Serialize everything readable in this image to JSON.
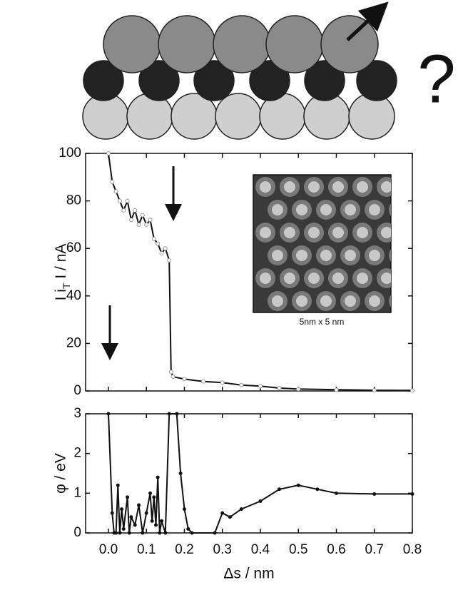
{
  "diagram": {
    "label": "?"
  },
  "chart_data": [
    {
      "type": "line",
      "ylabel": [
        "I i",
        "T",
        " I / nA"
      ],
      "inset_label": "5nm x 5 nm",
      "xlim": [
        -0.06,
        0.8
      ],
      "ylim": [
        0,
        100
      ],
      "yticks": [
        0,
        20,
        40,
        60,
        80,
        100
      ],
      "xticks": [
        {
          "value": 0,
          "label": "0.0"
        },
        0.1,
        0.2,
        0.3,
        0.4,
        0.5,
        0.6,
        0.7,
        0.8
      ],
      "series": [
        {
          "color": "#111111",
          "x": [
            0.0,
            0.01,
            0.02,
            0.03,
            0.04,
            0.05,
            0.06,
            0.07,
            0.08,
            0.09,
            0.1,
            0.11,
            0.12,
            0.13,
            0.14,
            0.15,
            0.16,
            0.165,
            0.17,
            0.2,
            0.25,
            0.3,
            0.35,
            0.4,
            0.45,
            0.5,
            0.6,
            0.7,
            0.8
          ],
          "values": [
            100,
            88,
            84,
            80,
            76,
            80,
            72,
            76,
            70,
            74,
            70,
            72,
            64,
            62,
            58,
            60,
            55,
            8,
            6,
            5,
            4,
            3.5,
            2.5,
            2,
            1.2,
            0.8,
            0.5,
            0.3,
            0.2
          ]
        }
      ]
    },
    {
      "type": "line",
      "ylabel": "φ / eV",
      "xlabel": "Δs / nm",
      "xlim": [
        -0.06,
        0.8
      ],
      "ylim": [
        0,
        3
      ],
      "yticks": [
        0,
        1,
        2,
        3
      ],
      "xticks": [
        {
          "value": 0,
          "label": "0.0"
        },
        0.1,
        0.2,
        0.3,
        0.4,
        0.5,
        0.6,
        0.7,
        0.8
      ],
      "series": [
        {
          "color": "#111111",
          "x": [
            0.0,
            0.01,
            0.015,
            0.02,
            0.025,
            0.03,
            0.035,
            0.04,
            0.05,
            0.055,
            0.06,
            0.07,
            0.08,
            0.09,
            0.1,
            0.11,
            0.115,
            0.12,
            0.125,
            0.13,
            0.135,
            0.14,
            0.15,
            0.16,
            0.18,
            0.19,
            0.2,
            0.21,
            0.22,
            0.28,
            0.3,
            0.32,
            0.35,
            0.4,
            0.45,
            0.5,
            0.55,
            0.6,
            0.7,
            0.8
          ],
          "values": [
            3,
            0.5,
            0,
            0,
            1.2,
            0,
            0.6,
            0.1,
            0.9,
            0,
            0.4,
            0.2,
            0.7,
            0,
            0.5,
            1.0,
            0.3,
            0.9,
            0.2,
            1.4,
            0,
            0.3,
            0,
            3,
            3,
            1.5,
            0.6,
            0.1,
            0,
            0,
            0.5,
            0.4,
            0.6,
            0.8,
            1.1,
            1.2,
            1.1,
            1.0,
            0.98,
            0.98
          ]
        }
      ]
    }
  ]
}
